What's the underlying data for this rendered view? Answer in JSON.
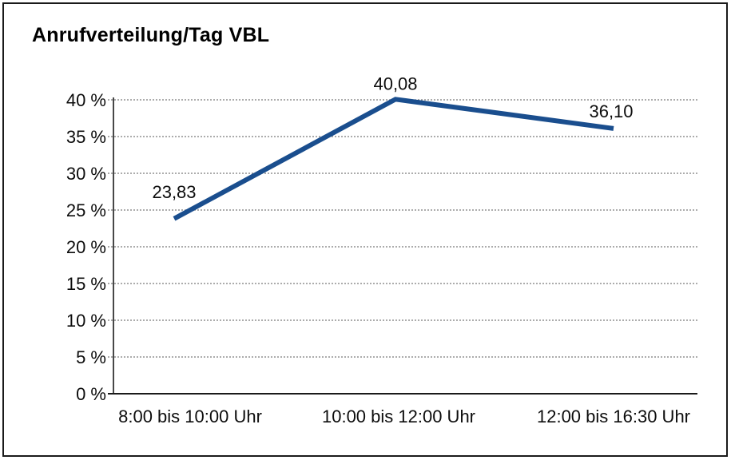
{
  "frame": {
    "background_color": "#ffffff",
    "border_color": "#1a1a1a"
  },
  "chart_data": {
    "type": "line",
    "title": "Anrufverteilung/Tag VBL",
    "categories": [
      "8:00 bis 10:00 Uhr",
      "10:00 bis 12:00 Uhr",
      "12:00 bis 16:30 Uhr"
    ],
    "series": [
      {
        "name": "Anrufverteilung",
        "values": [
          23.83,
          40.08,
          36.1
        ]
      }
    ],
    "point_labels": [
      "23,83",
      "40,08",
      "36,10"
    ],
    "y_ticks": [
      0,
      5,
      10,
      15,
      20,
      25,
      30,
      35,
      40
    ],
    "y_tick_labels": [
      "0 %",
      "5 %",
      "10 %",
      "15 %",
      "20 %",
      "25 %",
      "30 %",
      "35 %",
      "40 %"
    ],
    "ylim": [
      0,
      40
    ],
    "xlabel": "",
    "ylabel": "",
    "grid": "horizontal-dotted",
    "legend": "none",
    "line_color": "#1a4e8e",
    "gridline_color": "#7a7a7a",
    "axis_color": "#1a1a1a",
    "text_color": "#0d0d0d"
  }
}
